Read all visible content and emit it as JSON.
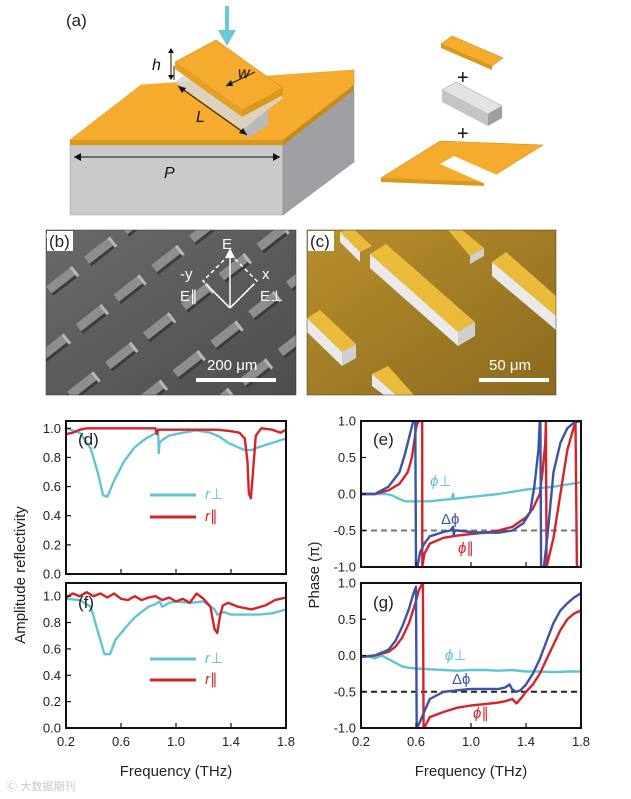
{
  "panels": {
    "a": "(a)",
    "b": "(b)",
    "c": "(c)",
    "d": "(d)",
    "e": "(e)",
    "f": "(f)",
    "g": "(g)"
  },
  "schematic": {
    "h": "h",
    "w": "w",
    "L": "L",
    "P": "P",
    "plus": "+"
  },
  "sem": {
    "E": "E",
    "neg_y": "-y",
    "x": "x",
    "E_par": "E∥",
    "E_perp": "E⊥",
    "scale_b": "200 μm",
    "scale_c": "50 μm"
  },
  "labels": {
    "ylabel_left": "Amplitude reflectivity",
    "ylabel_right": "Phase (π)",
    "xlabel": "Frequency (THz)",
    "r_perp": "r⊥",
    "r_par": "r∥",
    "phi_perp": "ϕ⊥",
    "phi_par": "ϕ∥",
    "delta_phi": "Δϕ"
  },
  "watermark": "Ⓒ 大数据期刊",
  "colors": {
    "cyan": "#62c3d4",
    "red": "#d6232b",
    "blue": "#3c54a4",
    "gold": "#f5ab2e",
    "gray": "#c4c6c8"
  },
  "chart_data": [
    {
      "id": "d",
      "type": "line",
      "xlim": [
        0.2,
        1.8
      ],
      "ylim": [
        0.0,
        1.05
      ],
      "xticks": [
        0.2,
        0.6,
        1.0,
        1.4,
        1.8
      ],
      "yticks": [
        0.0,
        0.2,
        0.4,
        0.6,
        0.8,
        1.0
      ],
      "xticklabels": [],
      "yticklabels": [
        "0.0",
        "0.2",
        "0.4",
        "0.6",
        "0.8",
        "1.0"
      ],
      "series": [
        {
          "name": "r⊥",
          "color": "#62c3d4",
          "x": [
            0.2,
            0.3,
            0.38,
            0.43,
            0.47,
            0.5,
            0.55,
            0.62,
            0.7,
            0.78,
            0.84,
            0.87,
            0.875,
            0.88,
            0.9,
            0.95,
            1.05,
            1.15,
            1.25,
            1.32,
            1.38,
            1.45,
            1.5,
            1.55,
            1.6,
            1.7,
            1.8
          ],
          "y": [
            1.0,
            0.97,
            0.86,
            0.7,
            0.54,
            0.53,
            0.64,
            0.77,
            0.87,
            0.93,
            0.96,
            0.98,
            0.83,
            0.9,
            0.92,
            0.95,
            0.97,
            0.985,
            0.97,
            0.94,
            0.9,
            0.87,
            0.85,
            0.85,
            0.87,
            0.9,
            0.93
          ]
        },
        {
          "name": "r∥",
          "color": "#d6232b",
          "x": [
            0.2,
            0.25,
            0.3,
            0.35,
            0.4,
            0.6,
            0.8,
            0.85,
            0.86,
            0.87,
            0.9,
            1.2,
            1.3,
            1.4,
            1.46,
            1.5,
            1.52,
            1.53,
            1.545,
            1.56,
            1.58,
            1.62,
            1.7,
            1.76,
            1.8
          ],
          "y": [
            0.96,
            0.97,
            0.99,
            1.0,
            1.0,
            1.0,
            1.0,
            1.0,
            0.96,
            0.99,
            0.99,
            0.99,
            0.99,
            0.98,
            0.97,
            0.93,
            0.77,
            0.55,
            0.52,
            0.7,
            0.95,
            1.0,
            0.99,
            0.97,
            0.99
          ]
        }
      ]
    },
    {
      "id": "e",
      "type": "line",
      "xlim": [
        0.2,
        1.8
      ],
      "ylim": [
        -1.0,
        1.0
      ],
      "xticks": [
        0.2,
        0.6,
        1.0,
        1.4,
        1.8
      ],
      "yticks": [
        -1.0,
        -0.5,
        0.0,
        0.5,
        1.0
      ],
      "xticklabels": [],
      "yticklabels": [
        "-1.0",
        "-0.5",
        "0.0",
        "0.5",
        "1.0"
      ],
      "dashed_y": -0.5,
      "series": [
        {
          "name": "ϕ⊥",
          "color": "#62c3d4",
          "x": [
            0.2,
            0.3,
            0.38,
            0.43,
            0.47,
            0.52,
            0.6,
            0.7,
            0.8,
            0.86,
            0.87,
            0.875,
            0.88,
            0.9,
            1.0,
            1.2,
            1.4,
            1.6,
            1.8
          ],
          "y": [
            0.0,
            0.0,
            0.0,
            -0.02,
            -0.06,
            -0.1,
            -0.1,
            -0.1,
            -0.08,
            -0.07,
            0.0,
            -0.06,
            -0.07,
            -0.06,
            -0.04,
            0.0,
            0.06,
            0.1,
            0.16
          ]
        },
        {
          "name": "ϕ∥",
          "color": "#d6232b",
          "x": [
            0.2,
            0.3,
            0.4,
            0.48,
            0.54,
            0.57,
            0.59,
            0.6,
            0.61,
            0.62,
            0.63,
            0.645,
            0.646,
            0.66,
            0.7,
            0.8,
            0.9,
            1.0,
            1.1,
            1.2,
            1.3,
            1.4,
            1.45,
            1.5,
            1.52,
            1.54,
            1.545,
            1.55,
            1.6,
            1.65,
            1.7,
            1.75,
            1.76,
            1.77,
            1.8
          ],
          "y": [
            0.0,
            0.0,
            0.05,
            0.14,
            0.3,
            0.5,
            0.75,
            0.9,
            0.97,
            1.0,
            1.0,
            1.0,
            -1.0,
            -0.82,
            -0.68,
            -0.6,
            -0.57,
            -0.55,
            -0.53,
            -0.5,
            -0.45,
            -0.32,
            -0.2,
            0.0,
            0.3,
            0.7,
            1.0,
            -1.0,
            -0.6,
            0.0,
            0.6,
            0.93,
            0.97,
            -1.0,
            -1.0
          ]
        },
        {
          "name": "Δϕ",
          "color": "#3c54a4",
          "x": [
            0.2,
            0.3,
            0.4,
            0.48,
            0.52,
            0.56,
            0.58,
            0.595,
            0.6,
            0.605,
            0.61,
            0.63,
            0.66,
            0.7,
            0.8,
            0.85,
            0.87,
            0.875,
            0.88,
            0.9,
            1.0,
            1.1,
            1.2,
            1.3,
            1.38,
            1.43,
            1.46,
            1.49,
            1.5,
            1.505,
            1.51,
            1.52,
            1.53,
            1.56,
            1.6,
            1.65,
            1.7,
            1.75,
            1.8
          ],
          "y": [
            0.0,
            0.0,
            0.1,
            0.3,
            0.55,
            0.85,
            1.0,
            1.0,
            -1.0,
            -1.0,
            -1.0,
            -0.8,
            -0.68,
            -0.58,
            -0.52,
            -0.5,
            -0.45,
            -0.56,
            -0.5,
            -0.5,
            -0.52,
            -0.53,
            -0.53,
            -0.5,
            -0.4,
            -0.25,
            0.1,
            0.6,
            1.0,
            1.0,
            -1.0,
            -1.0,
            -1.0,
            -0.5,
            0.3,
            0.7,
            0.9,
            0.98,
            1.0
          ]
        }
      ]
    },
    {
      "id": "f",
      "type": "line",
      "xlim": [
        0.2,
        1.8
      ],
      "ylim": [
        0.0,
        1.1
      ],
      "xticks": [
        0.2,
        0.6,
        1.0,
        1.4,
        1.8
      ],
      "yticks": [
        0.0,
        0.2,
        0.4,
        0.6,
        0.8,
        1.0
      ],
      "xticklabels": [
        "0.2",
        "0.6",
        "1.0",
        "1.4",
        "1.8"
      ],
      "yticklabels": [
        "0.0",
        "0.2",
        "0.4",
        "0.6",
        "0.8",
        "1.0"
      ],
      "series": [
        {
          "name": "r⊥",
          "color": "#62c3d4",
          "x": [
            0.2,
            0.3,
            0.38,
            0.44,
            0.48,
            0.52,
            0.56,
            0.6,
            0.64,
            0.7,
            0.75,
            0.8,
            0.85,
            0.88,
            0.9,
            0.95,
            1.0,
            1.1,
            1.2,
            1.28,
            1.3,
            1.35,
            1.4,
            1.5,
            1.6,
            1.7,
            1.8
          ],
          "y": [
            0.98,
            0.97,
            0.92,
            0.7,
            0.56,
            0.56,
            0.67,
            0.72,
            0.77,
            0.84,
            0.88,
            0.92,
            0.94,
            0.96,
            0.92,
            0.95,
            0.96,
            0.95,
            0.96,
            0.9,
            0.86,
            0.88,
            0.86,
            0.86,
            0.86,
            0.87,
            0.9
          ]
        },
        {
          "name": "r∥",
          "color": "#d6232b",
          "x": [
            0.2,
            0.25,
            0.3,
            0.35,
            0.4,
            0.45,
            0.5,
            0.55,
            0.6,
            0.65,
            0.7,
            0.75,
            0.8,
            0.85,
            0.9,
            0.95,
            1.0,
            1.05,
            1.1,
            1.15,
            1.2,
            1.25,
            1.28,
            1.3,
            1.32,
            1.34,
            1.38,
            1.45,
            1.55,
            1.65,
            1.72,
            1.8
          ],
          "y": [
            0.99,
            1.02,
            1.0,
            1.03,
            1.0,
            1.02,
            0.99,
            1.02,
            0.98,
            0.97,
            1.0,
            0.97,
            0.99,
            1.0,
            0.97,
            0.99,
            0.96,
            0.98,
            0.95,
            1.02,
            0.98,
            0.92,
            0.75,
            0.72,
            0.85,
            0.93,
            0.95,
            0.92,
            0.9,
            0.93,
            0.97,
            0.99
          ]
        }
      ]
    },
    {
      "id": "g",
      "type": "line",
      "xlim": [
        0.2,
        1.8
      ],
      "ylim": [
        -1.0,
        1.0
      ],
      "xticks": [
        0.2,
        0.6,
        1.0,
        1.4,
        1.8
      ],
      "yticks": [
        -1.0,
        -0.5,
        0.0,
        0.5,
        1.0
      ],
      "xticklabels": [
        "0.2",
        "0.6",
        "1.0",
        "1.4",
        "1.8"
      ],
      "yticklabels": [
        "-1.0",
        "-0.5",
        "0.0",
        "0.5",
        "1.0"
      ],
      "dashed_y": -0.5,
      "series": [
        {
          "name": "ϕ⊥",
          "color": "#62c3d4",
          "x": [
            0.2,
            0.25,
            0.3,
            0.35,
            0.4,
            0.45,
            0.5,
            0.55,
            0.6,
            0.7,
            0.8,
            0.9,
            1.0,
            1.1,
            1.2,
            1.3,
            1.4,
            1.5,
            1.6,
            1.7,
            1.8
          ],
          "y": [
            -0.02,
            -0.01,
            -0.04,
            0.0,
            -0.05,
            -0.1,
            -0.15,
            -0.17,
            -0.18,
            -0.19,
            -0.2,
            -0.21,
            -0.2,
            -0.2,
            -0.21,
            -0.2,
            -0.22,
            -0.22,
            -0.23,
            -0.22,
            -0.22
          ]
        },
        {
          "name": "ϕ∥",
          "color": "#d6232b",
          "x": [
            0.2,
            0.3,
            0.4,
            0.45,
            0.5,
            0.55,
            0.6,
            0.62,
            0.64,
            0.65,
            0.655,
            0.66,
            0.7,
            0.8,
            0.9,
            1.0,
            1.1,
            1.2,
            1.25,
            1.3,
            1.33,
            1.36,
            1.4,
            1.45,
            1.5,
            1.55,
            1.6,
            1.65,
            1.7,
            1.75,
            1.8
          ],
          "y": [
            -0.02,
            0.0,
            0.05,
            0.12,
            0.25,
            0.45,
            0.75,
            0.9,
            0.97,
            1.0,
            -1.0,
            -1.0,
            -0.85,
            -0.78,
            -0.72,
            -0.69,
            -0.67,
            -0.65,
            -0.63,
            -0.6,
            -0.66,
            -0.6,
            -0.5,
            -0.4,
            -0.25,
            -0.05,
            0.15,
            0.35,
            0.5,
            0.58,
            0.62
          ]
        },
        {
          "name": "Δϕ",
          "color": "#3c54a4",
          "x": [
            0.2,
            0.3,
            0.4,
            0.45,
            0.5,
            0.55,
            0.58,
            0.6,
            0.605,
            0.61,
            0.62,
            0.7,
            0.8,
            0.9,
            1.0,
            1.1,
            1.2,
            1.25,
            1.28,
            1.3,
            1.33,
            1.36,
            1.4,
            1.45,
            1.5,
            1.55,
            1.6,
            1.65,
            1.7,
            1.75,
            1.8
          ],
          "y": [
            -0.02,
            0.0,
            0.08,
            0.2,
            0.4,
            0.65,
            0.85,
            0.95,
            -1.0,
            -1.0,
            -0.95,
            -0.6,
            -0.5,
            -0.48,
            -0.46,
            -0.46,
            -0.46,
            -0.44,
            -0.4,
            -0.47,
            -0.5,
            -0.48,
            -0.4,
            -0.25,
            -0.05,
            0.2,
            0.45,
            0.62,
            0.72,
            0.8,
            0.86
          ]
        }
      ]
    }
  ]
}
